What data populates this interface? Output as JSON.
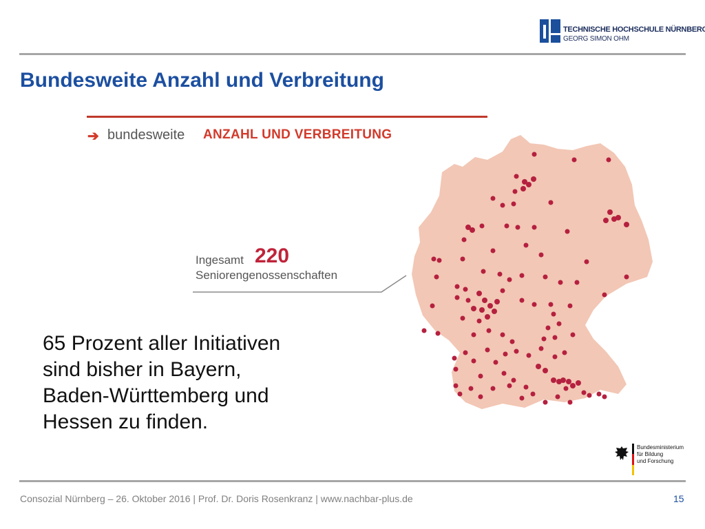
{
  "header": {
    "logo_line1": "TECHNISCHE HOCHSCHULE NÜRNBERG",
    "logo_line2": "GEORG SIMON OHM",
    "title": "Bundesweite Anzahl und Verbreitung"
  },
  "graphic": {
    "heading_prefix": "bundesweite",
    "heading_main": "ANZAHL UND VERBREITUNG",
    "arrow_glyph": "➔",
    "total_prefix": "Ingesamt",
    "total_count": "220",
    "total_suffix": "Seniorengenossenschaften",
    "map_icon": "germany-map-icon"
  },
  "body": {
    "lines": [
      "65 Prozent aller Initiativen",
      "sind bisher in Bayern,",
      "Baden-Württemberg und",
      "Hessen zu finden."
    ]
  },
  "sponsor": {
    "lines": [
      "Bundesministerium",
      "für Bildung",
      "und Forschung"
    ],
    "icon": "eagle-icon"
  },
  "footer": {
    "text": "Consozial Nürnberg – 26. Oktober 2016 | Prof. Dr. Doris Rosenkranz  | www.nachbar-plus.de",
    "page_number": "15"
  },
  "colors": {
    "title_blue": "#1c4fa0",
    "accent_red": "#d23a2b",
    "map_fill": "#f2c7b5",
    "dot": "#b5203f"
  }
}
